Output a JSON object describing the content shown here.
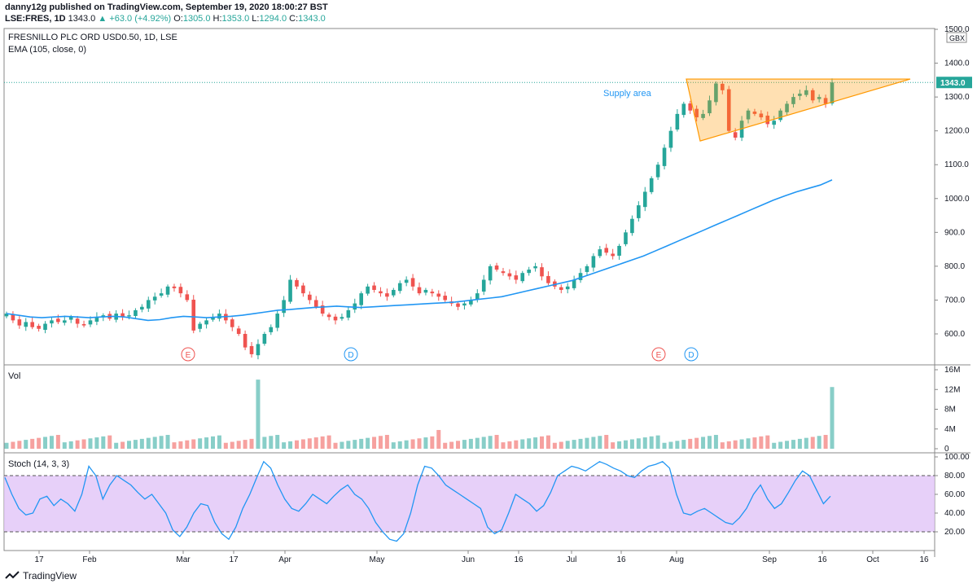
{
  "header": {
    "publisher_line": "danny12g published on TradingView.com, September 19, 2020 18:00:27 BST",
    "symbol": "LSE:FRES, 1D",
    "last": "1343.0",
    "change": "+63.0 (+4.92%)",
    "open": "1305.0",
    "high": "1353.0",
    "low": "1294.0",
    "close": "1343.0"
  },
  "main_pane": {
    "title": "FRESNILLO PLC ORD USD0.50, 1D, LSE",
    "indicator": "EMA (105, close, 0)",
    "currency": "GBX",
    "price_badge": "1343.0",
    "annotation": "Supply area",
    "events": [
      "E",
      "D",
      "E",
      "D"
    ]
  },
  "volume_pane": {
    "title": "Vol"
  },
  "stoch_pane": {
    "title": "Stoch (14, 3, 3)"
  },
  "footer": {
    "brand": "TradingView"
  },
  "colors": {
    "up": "#26a69a",
    "down": "#ef5350",
    "ema": "#2196f3",
    "stoch": "#2196f3",
    "stoch_band": "#e1c4f7",
    "triangle": "#ff9800"
  },
  "chart_data": [
    {
      "type": "candlestick",
      "title": "FRESNILLO PLC ORD USD0.50, 1D, LSE",
      "ylabel": "GBX",
      "ylim": [
        520,
        1520
      ],
      "yticks": [
        "1500.0",
        "1400.0",
        "1300.0",
        "1200.0",
        "1100.0",
        "1000.0",
        "900.0",
        "800.0",
        "700.0",
        "600.0"
      ],
      "xticks": [
        "17",
        "Feb",
        "Mar",
        "17",
        "Apr",
        "May",
        "Jun",
        "16",
        "Jul",
        "16",
        "Aug",
        "Sep",
        "16",
        "Oct",
        "16"
      ],
      "close_series": [
        660,
        640,
        625,
        635,
        620,
        615,
        630,
        640,
        635,
        640,
        650,
        630,
        625,
        640,
        650,
        655,
        645,
        660,
        650,
        655,
        670,
        680,
        700,
        710,
        720,
        740,
        735,
        720,
        700,
        610,
        630,
        640,
        650,
        660,
        640,
        620,
        600,
        560,
        540,
        570,
        600,
        620,
        660,
        700,
        760,
        740,
        720,
        700,
        680,
        660,
        650,
        640,
        650,
        670,
        690,
        720,
        740,
        730,
        720,
        710,
        730,
        750,
        760,
        740,
        720,
        730,
        720,
        710,
        700,
        690,
        680,
        690,
        700,
        720,
        760,
        800,
        790,
        780,
        770,
        760,
        780,
        790,
        800,
        770,
        750,
        740,
        730,
        740,
        760,
        780,
        800,
        830,
        850,
        840,
        830,
        860,
        900,
        940,
        980,
        1020,
        1060,
        1100,
        1150,
        1200,
        1250,
        1280,
        1260,
        1240,
        1250,
        1290,
        1340,
        1320,
        1200,
        1180,
        1230,
        1260,
        1250,
        1240,
        1220,
        1230,
        1260,
        1280,
        1300,
        1310,
        1320,
        1290,
        1300,
        1280,
        1343
      ],
      "ema_series": [
        660,
        655,
        650,
        648,
        650,
        652,
        650,
        648,
        650,
        652,
        650,
        645,
        640,
        642,
        648,
        652,
        650,
        648,
        650,
        652,
        655,
        660,
        665,
        670,
        672,
        675,
        678,
        680,
        682,
        680,
        678,
        680,
        682,
        684,
        686,
        688,
        690,
        692,
        694,
        698,
        702,
        706,
        710,
        718,
        726,
        734,
        742,
        750,
        758,
        770,
        782,
        794,
        806,
        818,
        830,
        845,
        860,
        875,
        890,
        905,
        920,
        935,
        950,
        965,
        980,
        995,
        1008,
        1020,
        1030,
        1040,
        1055
      ],
      "volume_spike": "14M",
      "volume_ticks": [
        "16M",
        "12M",
        "8M",
        "4M",
        "0"
      ],
      "supply_area": "Supply area"
    },
    {
      "type": "line",
      "title": "Stoch (14, 3, 3)",
      "ylim": [
        0,
        100
      ],
      "yticks": [
        "100.00",
        "80.00",
        "60.00",
        "40.00",
        "20.00"
      ],
      "band": [
        20,
        80
      ],
      "values": [
        78,
        60,
        45,
        38,
        40,
        55,
        58,
        48,
        55,
        50,
        42,
        60,
        90,
        80,
        55,
        70,
        80,
        75,
        70,
        62,
        55,
        60,
        50,
        40,
        22,
        15,
        25,
        40,
        50,
        48,
        30,
        18,
        12,
        25,
        45,
        60,
        78,
        95,
        88,
        70,
        55,
        45,
        42,
        50,
        60,
        55,
        50,
        58,
        65,
        70,
        60,
        55,
        45,
        30,
        20,
        12,
        10,
        18,
        40,
        70,
        90,
        88,
        80,
        70,
        65,
        60,
        55,
        50,
        45,
        25,
        18,
        22,
        40,
        60,
        55,
        50,
        42,
        48,
        62,
        80,
        85,
        90,
        88,
        85,
        90,
        95,
        92,
        88,
        85,
        80,
        78,
        85,
        90,
        92,
        95,
        88,
        60,
        40,
        38,
        42,
        45,
        40,
        35,
        30,
        28,
        35,
        45,
        60,
        70,
        55,
        45,
        50,
        62,
        75,
        85,
        80,
        65,
        50,
        58
      ]
    }
  ]
}
